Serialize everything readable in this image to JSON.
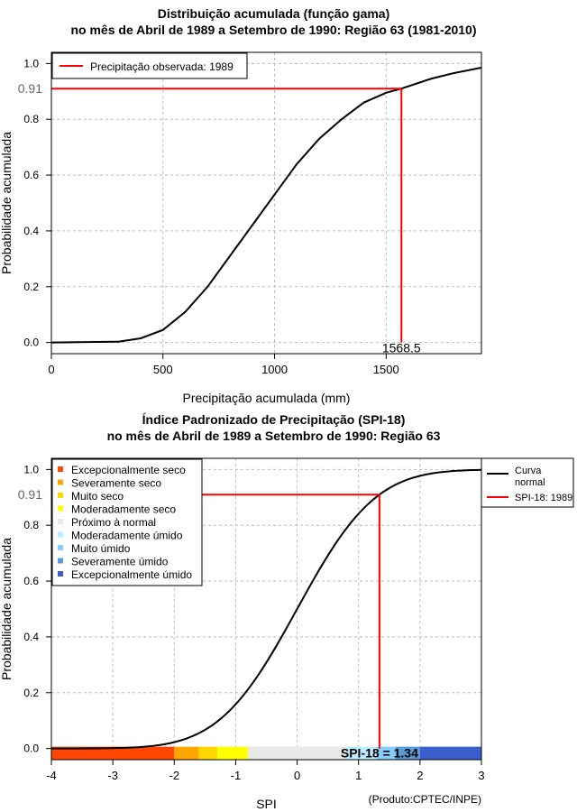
{
  "chart_data": [
    {
      "type": "line",
      "title": "Distribuição acumulada (função gama)",
      "subtitle": "no mês de Abril de 1989 a Setembro de 1990: Região 63 (1981-2010)",
      "xlabel": "Precipitação acumulada (mm)",
      "ylabel": "Probabilidade acumulada",
      "xlim": [
        0,
        1927
      ],
      "ylim": [
        -0.04,
        1.04
      ],
      "xticks": [
        "0",
        "500",
        "1000",
        "1500"
      ],
      "xtick_values": [
        0,
        500,
        1000,
        1500
      ],
      "yticks": [
        "0.0",
        "0.2",
        "0.4",
        "0.6",
        "0.8",
        "1.0"
      ],
      "ytick_values": [
        0,
        0.2,
        0.4,
        0.6,
        0.8,
        1.0
      ],
      "grid": true,
      "legend": {
        "position": "top-left",
        "entries": [
          "Precipitação observada: 1989"
        ]
      },
      "curve": {
        "x": [
          0,
          300,
          400,
          500,
          600,
          700,
          800,
          900,
          1000,
          1100,
          1200,
          1300,
          1400,
          1500,
          1568.5,
          1700,
          1800,
          1927
        ],
        "y": [
          0,
          0.003,
          0.015,
          0.045,
          0.11,
          0.2,
          0.31,
          0.42,
          0.53,
          0.64,
          0.73,
          0.8,
          0.86,
          0.895,
          0.91,
          0.945,
          0.965,
          0.985
        ]
      },
      "observed": {
        "x": 1568.5,
        "y": 0.91,
        "x_label": "1568.5",
        "y_label": "0.91"
      },
      "colors": {
        "curve": "#000000",
        "observed": "#ff0000"
      }
    },
    {
      "type": "line",
      "title": "Índice Padronizado de Precipitação (SPI-18)",
      "subtitle": "no mês de Abril de 1989 a Setembro de 1990: Região 63",
      "xlabel": "SPI",
      "ylabel": "Probabilidade acumulada",
      "xlim": [
        -4,
        3
      ],
      "ylim": [
        -0.04,
        1.04
      ],
      "xticks": [
        "-4",
        "-3",
        "-2",
        "-1",
        "0",
        "1",
        "2",
        "3"
      ],
      "xtick_values": [
        -4,
        -3,
        -2,
        -1,
        0,
        1,
        2,
        3
      ],
      "yticks": [
        "0.0",
        "0.2",
        "0.4",
        "0.6",
        "0.8",
        "1.0"
      ],
      "ytick_values": [
        0,
        0.2,
        0.4,
        0.6,
        0.8,
        1.0
      ],
      "grid": true,
      "legend": {
        "position": "top-right-outside",
        "entries": [
          "Curva normal",
          "SPI-18: 1989"
        ]
      },
      "category_legend": {
        "position": "top-left",
        "entries": [
          {
            "label": "Excepcionalmente seco",
            "color": "#ff4500",
            "range": [
              -4,
              -2
            ]
          },
          {
            "label": "Severamente seco",
            "color": "#ffa500",
            "range": [
              -2,
              -1.6
            ]
          },
          {
            "label": "Muito seco",
            "color": "#ffd700",
            "range": [
              -1.6,
              -1.3
            ]
          },
          {
            "label": "Moderadamente seco",
            "color": "#ffff00",
            "range": [
              -1.3,
              -0.8
            ]
          },
          {
            "label": "Próximo à normal",
            "color": "#e8e8e8",
            "range": [
              -0.8,
              0.8
            ]
          },
          {
            "label": "Moderadamente úmido",
            "color": "#bbeeff",
            "range": [
              0.8,
              1.3
            ]
          },
          {
            "label": "Muito úmido",
            "color": "#87cefa",
            "range": [
              1.3,
              1.6
            ]
          },
          {
            "label": "Severamente úmido",
            "color": "#5b9bd5",
            "range": [
              1.6,
              2
            ]
          },
          {
            "label": "Excepcionalmente úmido",
            "color": "#3a5fcd",
            "range": [
              2,
              3
            ]
          }
        ]
      },
      "observed": {
        "x": 1.34,
        "y": 0.91,
        "y_label": "0.91",
        "annotation": "SPI-18 = 1.34"
      },
      "credit": "(Produto:CPTEC/INPE)",
      "colors": {
        "curve": "#000000",
        "observed": "#ff0000"
      }
    }
  ]
}
